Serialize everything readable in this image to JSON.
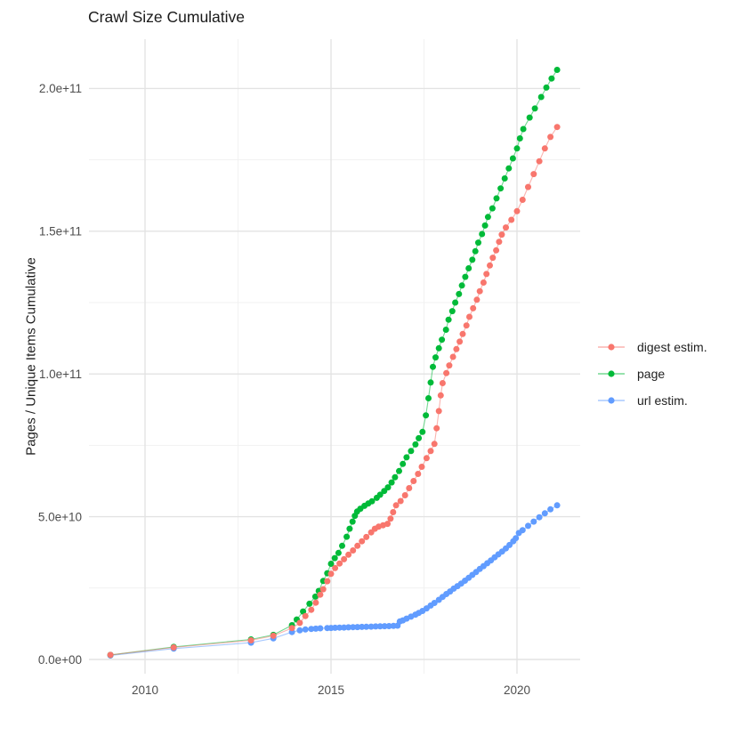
{
  "title": "Crawl Size Cumulative",
  "y_axis_title": "Pages / Unique Items Cumulative",
  "axes": {
    "x_tick_labels": [
      "2010",
      "2015",
      "2020"
    ],
    "y_tick_labels": [
      "0.0e+00",
      "5.0e+10",
      "1.0e+11",
      "1.5e+11",
      "2.0e+11"
    ]
  },
  "legend": {
    "items": [
      {
        "label": "digest estim.",
        "color": "#F8766D"
      },
      {
        "label": "page",
        "color": "#00BA38"
      },
      {
        "label": "url estim.",
        "color": "#619CFF"
      }
    ]
  },
  "colors": {
    "background": "#FFFFFF",
    "grid_major": "#E3E3E3",
    "grid_minor": "#F1F1F1",
    "tick_text": "#4D4D4D",
    "title_text": "#1A1A1A",
    "series_red": "#F8766D",
    "series_green": "#00BA38",
    "series_blue": "#619CFF"
  },
  "chart_data": {
    "type": "line",
    "title": "Crawl Size Cumulative",
    "xlabel": "",
    "ylabel": "Pages / Unique Items Cumulative",
    "note": "scatter points connected by thin lines; values below are in billions (1e9) of pages/items; x is decimal year of crawl",
    "grid": true,
    "legend_position": "right",
    "xlim": [
      2008.5,
      2021.7
    ],
    "ylim_billions": [
      0,
      217
    ],
    "x_major_ticks": [
      2010,
      2015,
      2020
    ],
    "x_minor_ticks": [
      2012.5,
      2017.5
    ],
    "y_major_ticks_billions": [
      0,
      50,
      100,
      150,
      200
    ],
    "y_minor_ticks_billions": [
      25,
      75,
      125,
      175
    ],
    "y_tick_display": [
      "0.0e+00",
      "5.0e+10",
      "1.0e+11",
      "1.5e+11",
      "2.0e+11"
    ],
    "series": [
      {
        "name": "digest estim.",
        "color": "#F8766D",
        "points": [
          [
            2009.07,
            1.6
          ],
          [
            2010.77,
            4.2
          ],
          [
            2012.85,
            6.7
          ],
          [
            2013.45,
            8.3
          ],
          [
            2013.95,
            11.0
          ],
          [
            2014.16,
            12.8
          ],
          [
            2014.31,
            15.2
          ],
          [
            2014.47,
            17.4
          ],
          [
            2014.59,
            19.9
          ],
          [
            2014.71,
            22.7
          ],
          [
            2014.79,
            24.6
          ],
          [
            2014.9,
            27.4
          ],
          [
            2015.0,
            30.0
          ],
          [
            2015.11,
            32.0
          ],
          [
            2015.23,
            33.6
          ],
          [
            2015.35,
            35.1
          ],
          [
            2015.47,
            36.7
          ],
          [
            2015.59,
            38.2
          ],
          [
            2015.71,
            39.8
          ],
          [
            2015.83,
            41.4
          ],
          [
            2015.95,
            42.9
          ],
          [
            2016.08,
            44.5
          ],
          [
            2016.18,
            45.8
          ],
          [
            2016.28,
            46.5
          ],
          [
            2016.4,
            47.0
          ],
          [
            2016.52,
            47.5
          ],
          [
            2016.6,
            49.3
          ],
          [
            2016.67,
            51.6
          ],
          [
            2016.75,
            54.0
          ],
          [
            2016.87,
            55.5
          ],
          [
            2016.99,
            57.5
          ],
          [
            2017.1,
            60.0
          ],
          [
            2017.22,
            62.5
          ],
          [
            2017.34,
            65.0
          ],
          [
            2017.44,
            67.5
          ],
          [
            2017.57,
            70.5
          ],
          [
            2017.68,
            73.0
          ],
          [
            2017.78,
            75.5
          ],
          [
            2017.84,
            81.0
          ],
          [
            2017.9,
            87.0
          ],
          [
            2017.95,
            92.5
          ],
          [
            2018.0,
            96.8
          ],
          [
            2018.1,
            100.3
          ],
          [
            2018.18,
            103.0
          ],
          [
            2018.28,
            106.0
          ],
          [
            2018.37,
            108.7
          ],
          [
            2018.46,
            111.3
          ],
          [
            2018.54,
            114.0
          ],
          [
            2018.64,
            117.0
          ],
          [
            2018.72,
            120.0
          ],
          [
            2018.82,
            123.0
          ],
          [
            2018.92,
            126.0
          ],
          [
            2019.0,
            129.0
          ],
          [
            2019.1,
            132.0
          ],
          [
            2019.18,
            135.0
          ],
          [
            2019.27,
            138.0
          ],
          [
            2019.35,
            140.7
          ],
          [
            2019.44,
            143.3
          ],
          [
            2019.52,
            146.3
          ],
          [
            2019.59,
            148.8
          ],
          [
            2019.7,
            151.3
          ],
          [
            2019.85,
            154.0
          ],
          [
            2020.0,
            157.0
          ],
          [
            2020.15,
            161.0
          ],
          [
            2020.3,
            165.5
          ],
          [
            2020.45,
            170.0
          ],
          [
            2020.6,
            174.5
          ],
          [
            2020.75,
            179.0
          ],
          [
            2020.9,
            183.0
          ],
          [
            2021.08,
            186.5
          ]
        ]
      },
      {
        "name": "page",
        "color": "#00BA38",
        "points": [
          [
            2009.07,
            1.6
          ],
          [
            2010.77,
            4.4
          ],
          [
            2012.85,
            7.0
          ],
          [
            2013.45,
            8.6
          ],
          [
            2013.95,
            12.0
          ],
          [
            2014.08,
            14.0
          ],
          [
            2014.25,
            16.8
          ],
          [
            2014.42,
            19.5
          ],
          [
            2014.58,
            22.0
          ],
          [
            2014.67,
            24.0
          ],
          [
            2014.79,
            27.5
          ],
          [
            2014.9,
            30.2
          ],
          [
            2015.0,
            33.5
          ],
          [
            2015.1,
            35.5
          ],
          [
            2015.2,
            37.3
          ],
          [
            2015.3,
            39.8
          ],
          [
            2015.42,
            43.0
          ],
          [
            2015.5,
            45.8
          ],
          [
            2015.58,
            48.3
          ],
          [
            2015.64,
            50.3
          ],
          [
            2015.7,
            51.8
          ],
          [
            2015.79,
            52.8
          ],
          [
            2015.9,
            53.8
          ],
          [
            2016.0,
            54.6
          ],
          [
            2016.1,
            55.4
          ],
          [
            2016.23,
            56.6
          ],
          [
            2016.32,
            57.7
          ],
          [
            2016.43,
            59.0
          ],
          [
            2016.53,
            60.3
          ],
          [
            2016.63,
            62.0
          ],
          [
            2016.72,
            63.8
          ],
          [
            2016.83,
            66.0
          ],
          [
            2016.93,
            68.5
          ],
          [
            2017.03,
            70.8
          ],
          [
            2017.15,
            73.0
          ],
          [
            2017.27,
            75.3
          ],
          [
            2017.36,
            77.5
          ],
          [
            2017.46,
            79.7
          ],
          [
            2017.55,
            85.5
          ],
          [
            2017.62,
            91.5
          ],
          [
            2017.68,
            97.0
          ],
          [
            2017.74,
            102.5
          ],
          [
            2017.81,
            105.8
          ],
          [
            2017.9,
            109.0
          ],
          [
            2017.98,
            112.0
          ],
          [
            2018.09,
            115.5
          ],
          [
            2018.16,
            119.0
          ],
          [
            2018.26,
            122.0
          ],
          [
            2018.34,
            125.0
          ],
          [
            2018.44,
            128.0
          ],
          [
            2018.52,
            131.0
          ],
          [
            2018.61,
            134.0
          ],
          [
            2018.7,
            137.0
          ],
          [
            2018.8,
            140.0
          ],
          [
            2018.88,
            143.0
          ],
          [
            2018.96,
            146.0
          ],
          [
            2019.06,
            149.0
          ],
          [
            2019.14,
            152.0
          ],
          [
            2019.22,
            155.0
          ],
          [
            2019.34,
            158.0
          ],
          [
            2019.45,
            161.5
          ],
          [
            2019.56,
            165.0
          ],
          [
            2019.67,
            168.5
          ],
          [
            2019.78,
            172.0
          ],
          [
            2019.89,
            175.5
          ],
          [
            2020.0,
            179.0
          ],
          [
            2020.08,
            182.5
          ],
          [
            2020.17,
            185.8
          ],
          [
            2020.34,
            189.8
          ],
          [
            2020.48,
            193.0
          ],
          [
            2020.65,
            197.0
          ],
          [
            2020.79,
            200.3
          ],
          [
            2020.93,
            203.5
          ],
          [
            2021.08,
            206.5
          ]
        ]
      },
      {
        "name": "url estim.",
        "color": "#619CFF",
        "points": [
          [
            2009.07,
            1.4
          ],
          [
            2010.77,
            3.8
          ],
          [
            2012.85,
            5.9
          ],
          [
            2013.45,
            7.4
          ],
          [
            2013.95,
            9.6
          ],
          [
            2014.16,
            10.2
          ],
          [
            2014.31,
            10.5
          ],
          [
            2014.47,
            10.7
          ],
          [
            2014.59,
            10.8
          ],
          [
            2014.71,
            10.9
          ],
          [
            2014.9,
            11.0
          ],
          [
            2015.0,
            11.05
          ],
          [
            2015.11,
            11.1
          ],
          [
            2015.23,
            11.15
          ],
          [
            2015.35,
            11.2
          ],
          [
            2015.47,
            11.25
          ],
          [
            2015.59,
            11.3
          ],
          [
            2015.71,
            11.35
          ],
          [
            2015.83,
            11.4
          ],
          [
            2015.95,
            11.45
          ],
          [
            2016.08,
            11.5
          ],
          [
            2016.2,
            11.55
          ],
          [
            2016.32,
            11.6
          ],
          [
            2016.44,
            11.65
          ],
          [
            2016.56,
            11.7
          ],
          [
            2016.68,
            11.75
          ],
          [
            2016.79,
            11.85
          ],
          [
            2016.85,
            13.3
          ],
          [
            2016.93,
            13.7
          ],
          [
            2017.03,
            14.3
          ],
          [
            2017.15,
            15.0
          ],
          [
            2017.27,
            15.7
          ],
          [
            2017.36,
            16.3
          ],
          [
            2017.46,
            17.0
          ],
          [
            2017.57,
            17.9
          ],
          [
            2017.68,
            18.9
          ],
          [
            2017.78,
            19.8
          ],
          [
            2017.9,
            20.9
          ],
          [
            2018.0,
            21.9
          ],
          [
            2018.1,
            22.9
          ],
          [
            2018.2,
            23.8
          ],
          [
            2018.3,
            24.8
          ],
          [
            2018.4,
            25.7
          ],
          [
            2018.5,
            26.6
          ],
          [
            2018.6,
            27.6
          ],
          [
            2018.7,
            28.6
          ],
          [
            2018.8,
            29.6
          ],
          [
            2018.9,
            30.6
          ],
          [
            2019.0,
            31.7
          ],
          [
            2019.1,
            32.7
          ],
          [
            2019.2,
            33.7
          ],
          [
            2019.3,
            34.7
          ],
          [
            2019.4,
            35.8
          ],
          [
            2019.5,
            36.8
          ],
          [
            2019.6,
            37.8
          ],
          [
            2019.7,
            38.9
          ],
          [
            2019.8,
            40.1
          ],
          [
            2019.9,
            41.4
          ],
          [
            2019.97,
            42.5
          ],
          [
            2020.05,
            44.3
          ],
          [
            2020.15,
            45.3
          ],
          [
            2020.3,
            46.8
          ],
          [
            2020.45,
            48.3
          ],
          [
            2020.6,
            49.8
          ],
          [
            2020.75,
            51.2
          ],
          [
            2020.9,
            52.6
          ],
          [
            2021.08,
            54.0
          ]
        ]
      }
    ]
  }
}
